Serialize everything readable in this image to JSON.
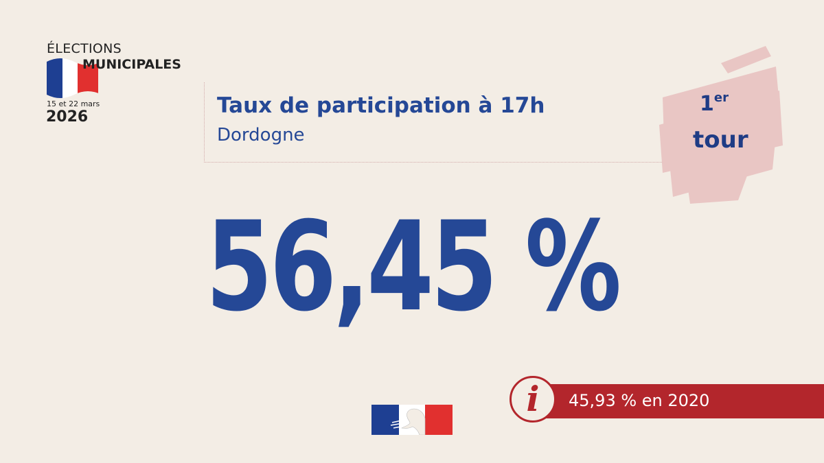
{
  "logo": {
    "line1": "ÉLECTIONS",
    "line2": "MUNICIPALES",
    "dates": "15 et 22 mars",
    "year": "2026",
    "flag_colors": [
      "#1e3f92",
      "#ffffff",
      "#e1302f"
    ]
  },
  "header": {
    "title": "Taux de participation à 17h",
    "subtitle": "Dordogne"
  },
  "badge": {
    "number": "1",
    "suffix": "er",
    "label": "tour",
    "color": "#e9c4c3"
  },
  "main": {
    "rate": "56,45 %"
  },
  "info": {
    "icon": "info-icon",
    "text": "45,93 % en 2020",
    "color": "#b3262c"
  },
  "footer": {
    "emblem": "marianne-emblem-icon"
  },
  "colors": {
    "background": "#f3ede5",
    "primary_blue": "#254896"
  }
}
